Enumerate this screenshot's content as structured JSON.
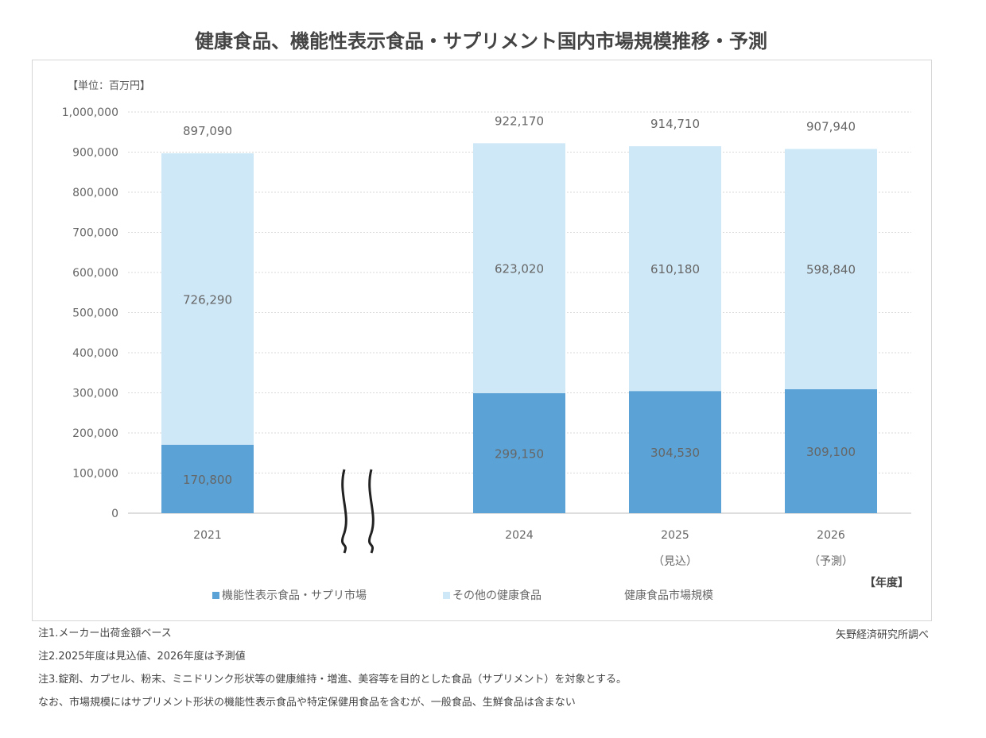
{
  "page": {
    "title": "健康食品、機能性表示食品・サプリメント国内市場規模推移・予測",
    "source": "矢野経済研究所調べ",
    "notes": [
      "注1.メーカー出荷金額ベース",
      "注2.2025年度は見込値、2026年度は予測値",
      "注3.錠剤、カプセル、粉末、ミニドリンク形状等の健康維持・増進、美容等を目的とした食品（サプリメント）を対象とする。",
      "なお、市場規模にはサプリメント形状の機能性表示食品や特定保健用食品を含むが、一般食品、生鮮食品は含まない"
    ]
  },
  "chart_data": {
    "type": "bar",
    "stacked": true,
    "unit_label": "【単位：百万円】",
    "xlabel": "【年度】",
    "categories": [
      "2021",
      "2024",
      "2025",
      "2026"
    ],
    "category_sublabels": [
      "",
      "",
      "（見込）",
      "（予測）"
    ],
    "axis_break_between": [
      "2021",
      "2024"
    ],
    "series": [
      {
        "name": "機能性表示食品・サプリ市場",
        "color": "#5ba3d6",
        "values": [
          170800,
          299150,
          304530,
          309100
        ],
        "labels": [
          "170,800",
          "299,150",
          "304,530",
          "309,100"
        ]
      },
      {
        "name": "その他の健康食品",
        "color": "#cfe8f7",
        "values": [
          726290,
          623020,
          610180,
          598840
        ],
        "labels": [
          "726,290",
          "623,020",
          "610,180",
          "598,840"
        ]
      }
    ],
    "totals": {
      "name": "健康食品市場規模",
      "values": [
        897090,
        922170,
        914710,
        907940
      ],
      "labels": [
        "897,090",
        "922,170",
        "914,710",
        "907,940"
      ]
    },
    "ylim": [
      0,
      1000000
    ],
    "yticks": [
      0,
      100000,
      200000,
      300000,
      400000,
      500000,
      600000,
      700000,
      800000,
      900000,
      1000000
    ],
    "ytick_labels": [
      "0",
      "100,000",
      "200,000",
      "300,000",
      "400,000",
      "500,000",
      "600,000",
      "700,000",
      "800,000",
      "900,000",
      "1,000,000"
    ],
    "grid": true,
    "legend_position": "bottom"
  }
}
